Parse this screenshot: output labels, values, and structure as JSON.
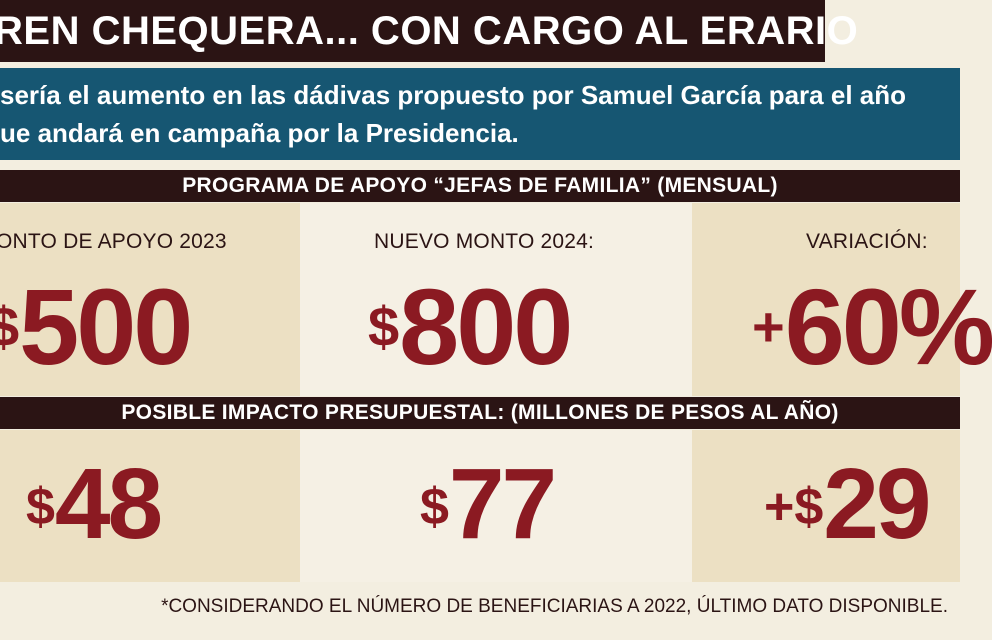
{
  "title": "REN CHEQUERA... CON CARGO AL ERARIO",
  "subtitle": {
    "line1": "sería el aumento en las dádivas propuesto por Samuel García para el año",
    "line2": "ue andará en campaña por la Presidencia."
  },
  "program": {
    "header": "PROGRAMA DE APOYO “JEFAS DE FAMILIA” (MENSUAL)",
    "panels": [
      {
        "label": "ONTO DE APOYO 2023",
        "symbol": "$",
        "value": "500"
      },
      {
        "label": "NUEVO MONTO 2024:",
        "symbol": "$",
        "value": "800"
      },
      {
        "label": "VARIACIÓN:",
        "symbol": "+",
        "value": "60%"
      }
    ]
  },
  "impact": {
    "header": "POSIBLE IMPACTO PRESUPUESTAL: (MILLONES DE PESOS AL AÑO)",
    "panels": [
      {
        "symbol": "$",
        "value": "48"
      },
      {
        "symbol": "$",
        "value": "77"
      },
      {
        "symbol": "+$",
        "value": "29"
      }
    ]
  },
  "footnote": "*CONSIDERANDO EL NÚMERO DE BENEFICIARIAS A 2022, ÚLTIMO DATO DISPONIBLE.",
  "colors": {
    "dark_brown": "#2b1414",
    "teal_blue": "#165672",
    "crimson": "#8b1a22",
    "beige": "#ece0c3",
    "cream": "#f5f0e4"
  }
}
